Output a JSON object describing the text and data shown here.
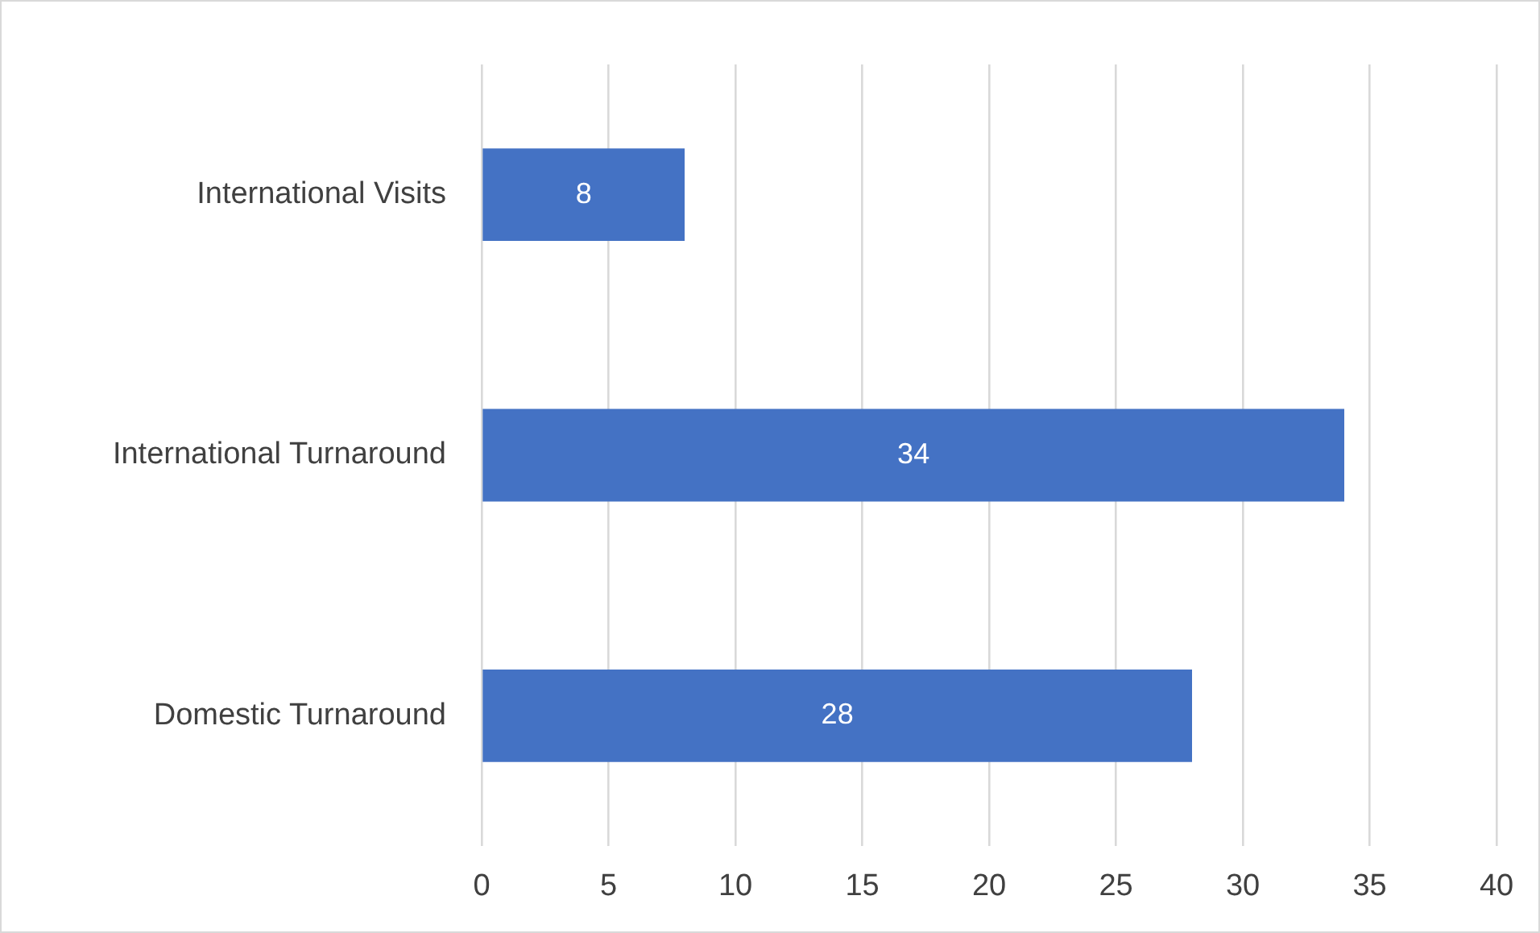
{
  "chart_data": {
    "type": "bar",
    "orientation": "horizontal",
    "categories": [
      "International Visits",
      "International Turnaround",
      "Domestic Turnaround"
    ],
    "values": [
      8,
      34,
      28
    ],
    "color": "#4472c4",
    "xlim": [
      0,
      40
    ],
    "xticks": [
      0,
      5,
      10,
      15,
      20,
      25,
      30,
      35,
      40
    ],
    "grid": "x",
    "data_labels": true
  }
}
